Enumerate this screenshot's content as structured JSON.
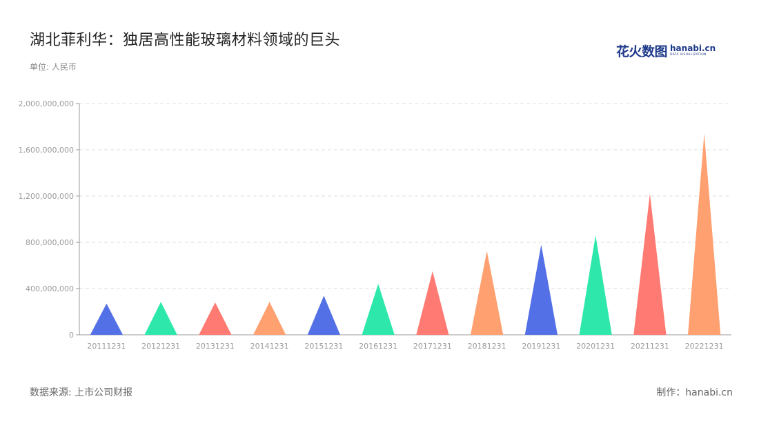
{
  "header": {
    "title": "湖北菲利华：独居高性能玻璃材料领域的巨头",
    "unit": "单位: 人民币"
  },
  "logo": {
    "cn": "花火数图",
    "en": "hanabi.cn",
    "tag": "DATA VISUALIZATION",
    "color": "#1e3a8a"
  },
  "footer": {
    "source": "数据来源: 上市公司财报",
    "credit": "制作：hanabi.cn"
  },
  "chart_data": {
    "type": "bar",
    "mark": "triangle",
    "categories": [
      "20111231",
      "20121231",
      "20131231",
      "20141231",
      "20151231",
      "20161231",
      "20171231",
      "20181231",
      "20191231",
      "20201231",
      "20211231",
      "20221231"
    ],
    "values": [
      270000000,
      285000000,
      280000000,
      285000000,
      338000000,
      440000000,
      550000000,
      725000000,
      780000000,
      860000000,
      1220000000,
      1740000000
    ],
    "colors": [
      "#5470e6",
      "#2ee8ab",
      "#ff7a72",
      "#ffa070",
      "#5470e6",
      "#2ee8ab",
      "#ff7a72",
      "#ffa070",
      "#5470e6",
      "#2ee8ab",
      "#ff7a72",
      "#ffa070"
    ],
    "ylim": [
      0,
      2000000000
    ],
    "yticks": [
      "0",
      "400,000,000",
      "800,000,000",
      "1,200,000,000",
      "1,600,000,000",
      "2,000,000,000"
    ],
    "ytick_values": [
      0,
      400000000,
      800000000,
      1200000000,
      1600000000,
      2000000000
    ],
    "grid": true,
    "xlabel": "",
    "ylabel": ""
  }
}
